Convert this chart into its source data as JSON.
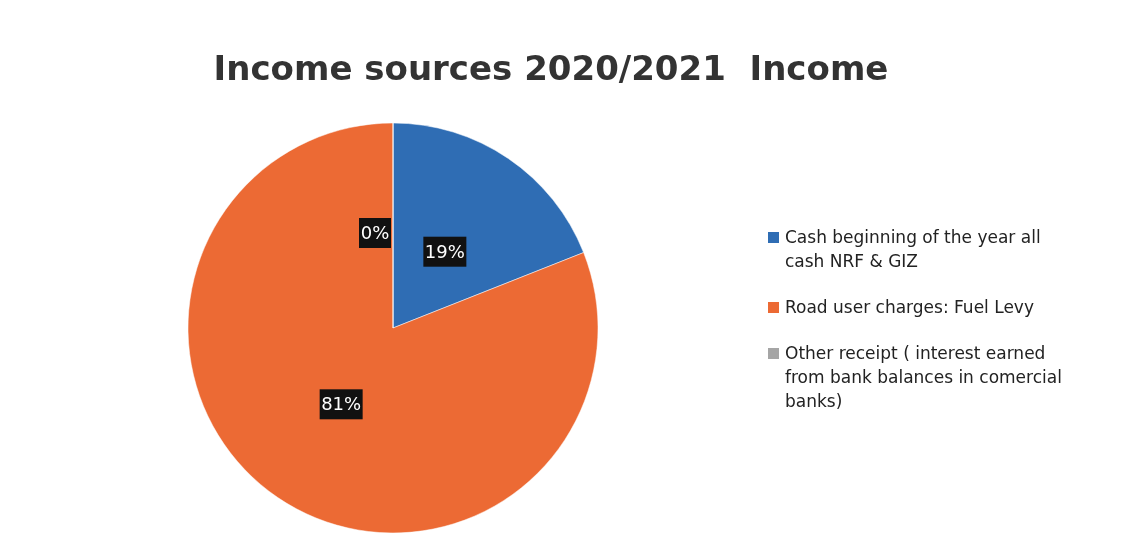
{
  "chart_data": {
    "type": "pie",
    "title": "Income sources 2020/2021  Income",
    "categories": [
      "Cash beginning of the year all cash NRF & GIZ",
      "Road user charges: Fuel Levy",
      "Other receipt ( interest earned from bank balances in comercial banks)"
    ],
    "values": [
      19,
      81,
      0
    ],
    "colors": [
      "#2f6db4",
      "#ec6a34",
      "#a5a5a5"
    ],
    "value_labels": [
      "19%",
      "81%",
      "0%"
    ],
    "legend": "right"
  }
}
